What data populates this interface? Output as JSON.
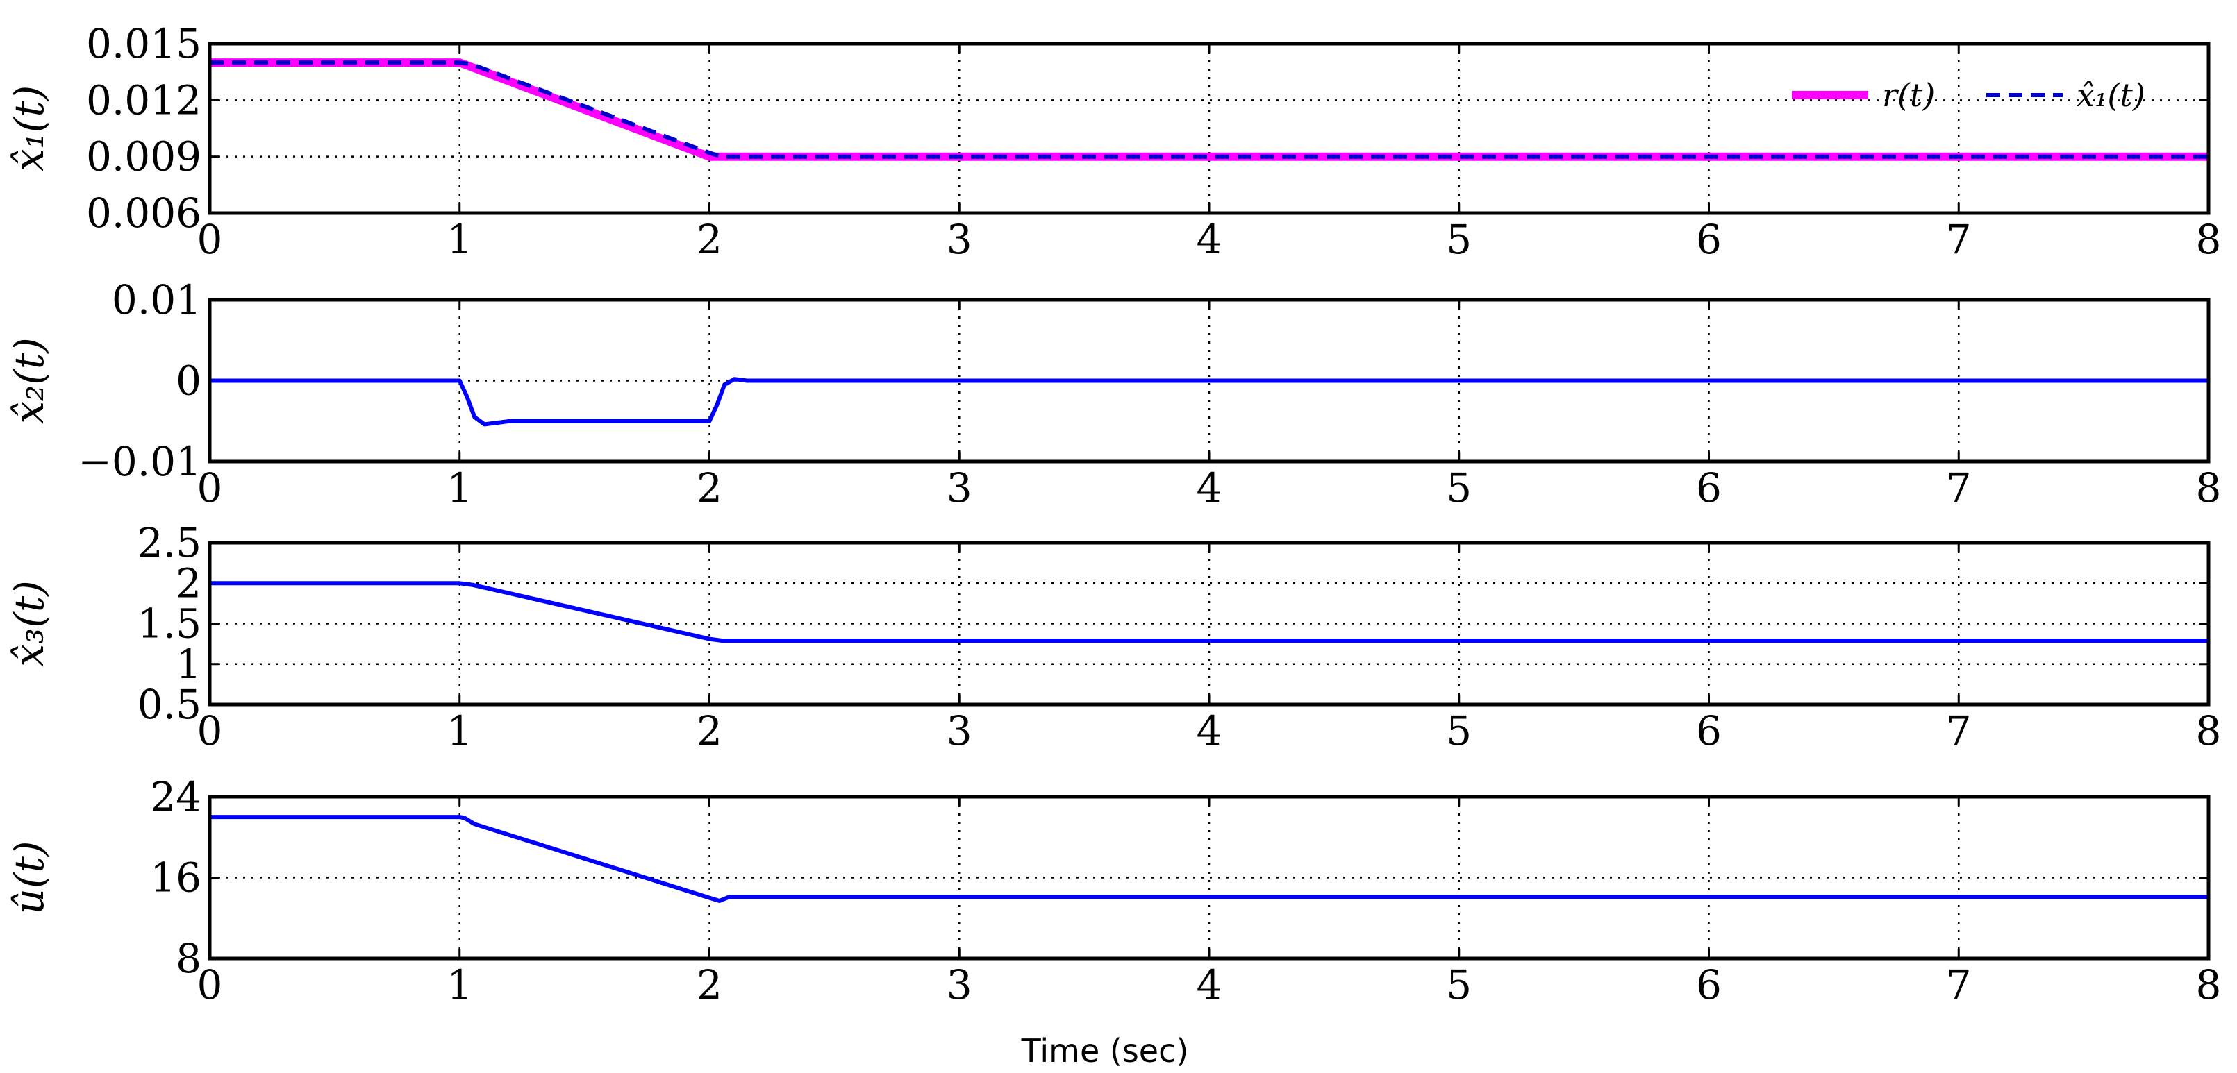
{
  "colors": {
    "reference": "#ff00ff",
    "estimate": "#0000cc",
    "series": "#0000ff",
    "grid": "#000000"
  },
  "chart_data": [
    {
      "type": "line",
      "ylabel": "x̂₁(t)",
      "xlim": [
        0,
        8
      ],
      "ylim": [
        0.006,
        0.015
      ],
      "xticks": [
        "0",
        "1",
        "2",
        "3",
        "4",
        "5",
        "6",
        "7",
        "8"
      ],
      "yticks": [
        {
          "value": 0.006,
          "label": "0.006"
        },
        {
          "value": 0.009,
          "label": "0.009"
        },
        {
          "value": 0.012,
          "label": "0.012"
        },
        {
          "value": 0.015,
          "label": "0.015"
        }
      ],
      "grid": true,
      "legend": "top-right",
      "series": [
        {
          "name": "r(t)",
          "style": "solid",
          "x": [
            0,
            1,
            2,
            8
          ],
          "y": [
            0.014,
            0.014,
            0.009,
            0.009
          ]
        },
        {
          "name": "x̂₁(t)",
          "style": "dashed",
          "x": [
            0,
            1,
            1.05,
            2,
            2.05,
            8
          ],
          "y": [
            0.014,
            0.014,
            0.0139,
            0.0092,
            0.009,
            0.009
          ]
        }
      ]
    },
    {
      "type": "line",
      "ylabel": "x̂₂(t)",
      "xlim": [
        0,
        8
      ],
      "ylim": [
        -0.01,
        0.01
      ],
      "xticks": [
        "0",
        "1",
        "2",
        "3",
        "4",
        "5",
        "6",
        "7",
        "8"
      ],
      "yticks": [
        {
          "value": -0.01,
          "label": "−0.01"
        },
        {
          "value": 0,
          "label": "0"
        },
        {
          "value": 0.01,
          "label": "0.01"
        }
      ],
      "grid": true,
      "series": [
        {
          "x": [
            0,
            1.0,
            1.03,
            1.06,
            1.1,
            1.15,
            1.2,
            1.3,
            2.0,
            2.03,
            2.06,
            2.1,
            2.15,
            8
          ],
          "y": [
            0,
            0,
            -0.002,
            -0.0045,
            -0.0054,
            -0.0052,
            -0.005,
            -0.005,
            -0.005,
            -0.003,
            -0.0005,
            0.0002,
            0,
            0
          ]
        }
      ]
    },
    {
      "type": "line",
      "ylabel": "x̂₃(t)",
      "xlim": [
        0,
        8
      ],
      "ylim": [
        0.5,
        2.5
      ],
      "xticks": [
        "0",
        "1",
        "2",
        "3",
        "4",
        "5",
        "6",
        "7",
        "8"
      ],
      "yticks": [
        {
          "value": 0.5,
          "label": "0.5"
        },
        {
          "value": 1,
          "label": "1"
        },
        {
          "value": 1.5,
          "label": "1.5"
        },
        {
          "value": 2,
          "label": "2"
        },
        {
          "value": 2.5,
          "label": "2.5"
        }
      ],
      "grid": true,
      "series": [
        {
          "x": [
            0,
            1,
            1.05,
            2,
            2.05,
            8
          ],
          "y": [
            2.0,
            2.0,
            1.98,
            1.31,
            1.29,
            1.29
          ]
        }
      ]
    },
    {
      "type": "line",
      "ylabel": "û(t)",
      "xlabel": "Time (sec)",
      "xlim": [
        0,
        8
      ],
      "ylim": [
        8,
        24
      ],
      "xticks": [
        "0",
        "1",
        "2",
        "3",
        "4",
        "5",
        "6",
        "7",
        "8"
      ],
      "yticks": [
        {
          "value": 8,
          "label": "8"
        },
        {
          "value": 16,
          "label": "16"
        },
        {
          "value": 24,
          "label": "24"
        }
      ],
      "grid": true,
      "series": [
        {
          "x": [
            0,
            1,
            1.02,
            1.06,
            2.0,
            2.04,
            2.08,
            8
          ],
          "y": [
            22.0,
            22.0,
            21.9,
            21.3,
            14.0,
            13.7,
            14.1,
            14.1
          ]
        }
      ]
    }
  ]
}
